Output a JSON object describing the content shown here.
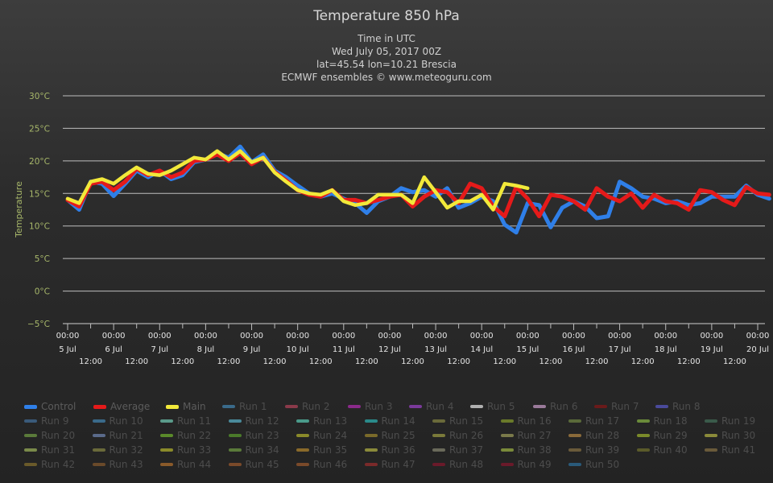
{
  "chart_data": {
    "type": "line",
    "title": "Temperature 850 hPa",
    "subtitle_lines": [
      "Time in UTC",
      "Wed July 05, 2017 00Z",
      "lat=45.54 lon=10.21 Brescia",
      "ECMWF ensembles © www.meteoguru.com"
    ],
    "ylabel": "Temperature",
    "ylim": [
      -5,
      30
    ],
    "yticks": [
      "30°C",
      "25°C",
      "20°C",
      "15°C",
      "10°C",
      "5°C",
      "0°C",
      "−5°C"
    ],
    "xlim_days": [
      0,
      15
    ],
    "xticks_top": [
      "00:00",
      "00:00",
      "00:00",
      "00:00",
      "00:00",
      "00:00",
      "00:00",
      "00:00",
      "00:00",
      "00:00",
      "00:00",
      "00:00",
      "00:00",
      "00:00",
      "00:00",
      "00:00"
    ],
    "xticks_dates": [
      "5 Jul",
      "6 Jul",
      "7 Jul",
      "8 Jul",
      "9 Jul",
      "10 Jul",
      "11 Jul",
      "12 Jul",
      "13 Jul",
      "14 Jul",
      "15 Jul",
      "16 Jul",
      "17 Jul",
      "18 Jul",
      "19 Jul",
      "20 Jul"
    ],
    "xticks_noon": [
      "12:00",
      "12:00",
      "12:00",
      "12:00",
      "12:00",
      "12:00",
      "12:00",
      "12:00",
      "12:00",
      "12:00",
      "12:00",
      "12:00",
      "12:00",
      "12:00",
      "12:00"
    ],
    "grid": true,
    "series": [
      {
        "name": "Control",
        "color": "#2f7fe8",
        "step_hours": 6,
        "values": [
          14,
          12.5,
          16.8,
          16.5,
          14.6,
          16.5,
          18.5,
          17.5,
          18.5,
          17.2,
          17.8,
          19.8,
          20.2,
          21.2,
          20.5,
          22.2,
          19.8,
          21,
          18.5,
          17.5,
          16.2,
          15,
          14.5,
          15,
          14.2,
          13.5,
          12,
          13.8,
          14.5,
          15.8,
          15.2,
          15.5,
          14.5,
          15.8,
          12.8,
          13.5,
          14.5,
          13.8,
          10.2,
          9,
          13.5,
          13.2,
          9.8,
          12.8,
          13.8,
          13,
          11.2,
          11.5,
          16.8,
          15.8,
          14.5,
          14.2,
          13.5,
          13.8,
          13.2,
          13.5,
          14.5,
          14.5,
          14.5,
          16.2,
          14.8,
          14.2
        ]
      },
      {
        "name": "Average",
        "color": "#e51a1a",
        "step_hours": 6,
        "values": [
          14,
          13,
          16.5,
          16.8,
          15.5,
          16.8,
          18.8,
          17.8,
          18.5,
          17.5,
          18.2,
          20,
          20.2,
          21,
          20,
          21.2,
          19.5,
          20.5,
          18.3,
          17,
          15.5,
          14.8,
          14.5,
          15.5,
          14,
          14,
          13.5,
          14,
          14.5,
          14.8,
          13,
          14.5,
          15.5,
          15.2,
          13.5,
          16.5,
          15.8,
          13,
          11.5,
          16,
          14.2,
          11.5,
          14.8,
          14.5,
          13.8,
          12.5,
          15.8,
          14.5,
          13.8,
          15,
          12.8,
          14.8,
          13.8,
          13.5,
          12.5,
          15.5,
          15.2,
          14,
          13.2,
          16,
          15,
          14.8
        ]
      },
      {
        "name": "Main",
        "color": "#f2e93a",
        "step_hours": 6,
        "values": [
          14.2,
          13.5,
          16.8,
          17.2,
          16.5,
          17.8,
          19,
          18,
          17.8,
          18.5,
          19.5,
          20.5,
          20.2,
          21.5,
          20.2,
          21.5,
          19.8,
          20.5,
          18.2,
          16.8,
          15.5,
          15,
          14.8,
          15.5,
          13.8,
          13.2,
          13.5,
          14.8,
          14.8,
          14.8,
          13.5,
          17.5,
          15.2,
          12.8,
          13.8,
          13.8,
          14.8,
          12.5,
          16.5,
          16.2,
          15.8
        ]
      }
    ]
  },
  "legend": {
    "items": [
      "Control",
      "Average",
      "Main",
      "Run 1",
      "Run 2",
      "Run 3",
      "Run 4",
      "Run 5",
      "Run 6",
      "Run 7",
      "Run 8",
      "Run 9",
      "Run 10",
      "Run 11",
      "Run 12",
      "Run 13",
      "Run 14",
      "Run 15",
      "Run 16",
      "Run 17",
      "Run 18",
      "Run 19",
      "Run 20",
      "Run 21",
      "Run 22",
      "Run 23",
      "Run 24",
      "Run 25",
      "Run 26",
      "Run 27",
      "Run 28",
      "Run 29",
      "Run 30",
      "Run 31",
      "Run 32",
      "Run 33",
      "Run 34",
      "Run 35",
      "Run 36",
      "Run 37",
      "Run 38",
      "Run 39",
      "Run 40",
      "Run 41",
      "Run 42",
      "Run 43",
      "Run 44",
      "Run 45",
      "Run 46",
      "Run 47",
      "Run 48",
      "Run 49",
      "Run 50"
    ],
    "colors": [
      "#2f7fe8",
      "#e51a1a",
      "#f2e93a",
      "#3a6a8a",
      "#8a3a4a",
      "#8a2a8a",
      "#7a3a9a",
      "#b0b0b0",
      "#9a7a9a",
      "#6a1a1a",
      "#4a4a9a",
      "#3a5a7a",
      "#3a6a8a",
      "#5a9a8a",
      "#4a8a9a",
      "#4a9a8a",
      "#2a8a8a",
      "#6a6a3a",
      "#6a7a2a",
      "#5a6a3a",
      "#6a8a3a",
      "#3a5a4a",
      "#5a7a3a",
      "#5a6a8a",
      "#5a8a2a",
      "#4a7a2a",
      "#8a8a2a",
      "#7a6a2a",
      "#7a7a3a",
      "#7a7a4a",
      "#8a6a3a",
      "#7a8a2a",
      "#8a8a3a",
      "#7a8a4a",
      "#6a6a3a",
      "#8a8a2a",
      "#5a7a3a",
      "#8a6a2a",
      "#8a8a3a",
      "#6a6a5a",
      "#7a8a3a",
      "#6a5a3a",
      "#5a5a2a",
      "#6a5a3a",
      "#6a5a2a",
      "#6a4a2a",
      "#8a5a2a",
      "#7a4a2a",
      "#7a4a2a",
      "#7a2a2a",
      "#6a1a2a",
      "#6a1a2a",
      "#2a5a7a"
    ]
  }
}
